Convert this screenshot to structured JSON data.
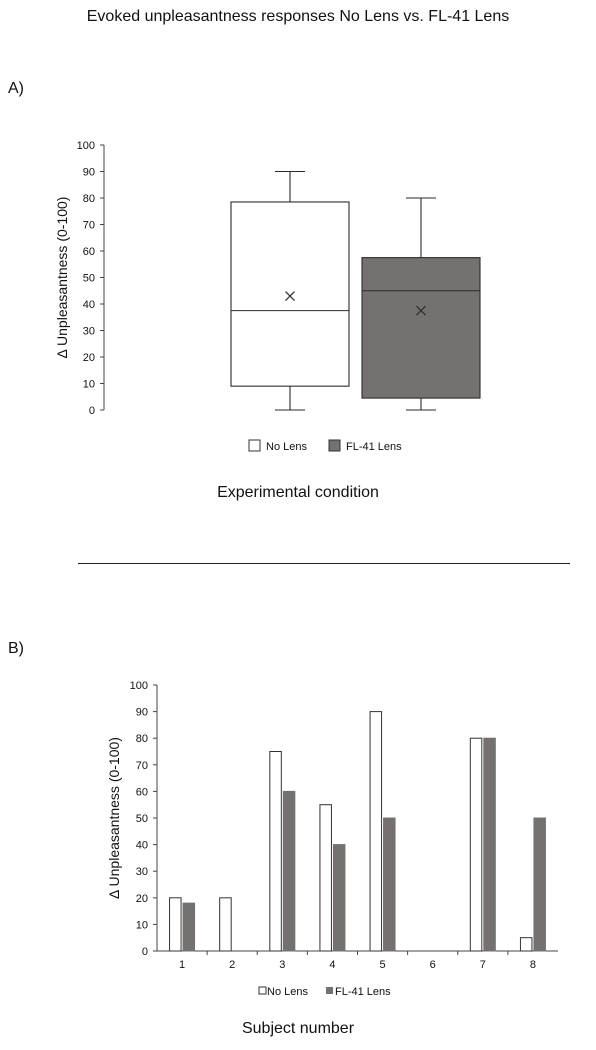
{
  "title": "Evoked unpleasantness responses No Lens vs. FL-41 Lens",
  "colors": {
    "no_lens": "#ffffff",
    "fl41": "#767171",
    "stroke": "#2b2b2b"
  },
  "chart_data": [
    {
      "panel_label": "A)",
      "type": "box",
      "ylabel": "Δ Unpleasantness  (0-100)",
      "xlabel": "Experimental condition",
      "ylim": [
        0,
        100
      ],
      "yticks": [
        "0",
        "10",
        "20",
        "30",
        "40",
        "50",
        "60",
        "70",
        "80",
        "90",
        "100"
      ],
      "legend": [
        "No Lens",
        "FL-41 Lens"
      ],
      "legend_position": "bottom",
      "series": [
        {
          "name": "No Lens",
          "min": 0,
          "q1": 9,
          "median": 37.5,
          "q3": 78.5,
          "max": 90,
          "mean": 43
        },
        {
          "name": "FL-41 Lens",
          "min": 0,
          "q1": 4.5,
          "median": 45,
          "q3": 57.5,
          "max": 80,
          "mean": 37.5
        }
      ]
    },
    {
      "panel_label": "B)",
      "type": "bar",
      "ylabel": "Δ Unpleasantness (0-100)",
      "xlabel": "Subject number",
      "ylim": [
        0,
        100
      ],
      "yticks": [
        "0",
        "10",
        "20",
        "30",
        "40",
        "50",
        "60",
        "70",
        "80",
        "90",
        "100"
      ],
      "categories": [
        "1",
        "2",
        "3",
        "4",
        "5",
        "6",
        "7",
        "8"
      ],
      "legend": [
        "No Lens",
        "FL-41 Lens"
      ],
      "legend_position": "bottom",
      "series": [
        {
          "name": "No Lens",
          "values": [
            20,
            20,
            75,
            55,
            90,
            0,
            80,
            5
          ]
        },
        {
          "name": "FL-41 Lens",
          "values": [
            18,
            0,
            60,
            40,
            50,
            0,
            80,
            50
          ]
        }
      ]
    }
  ]
}
